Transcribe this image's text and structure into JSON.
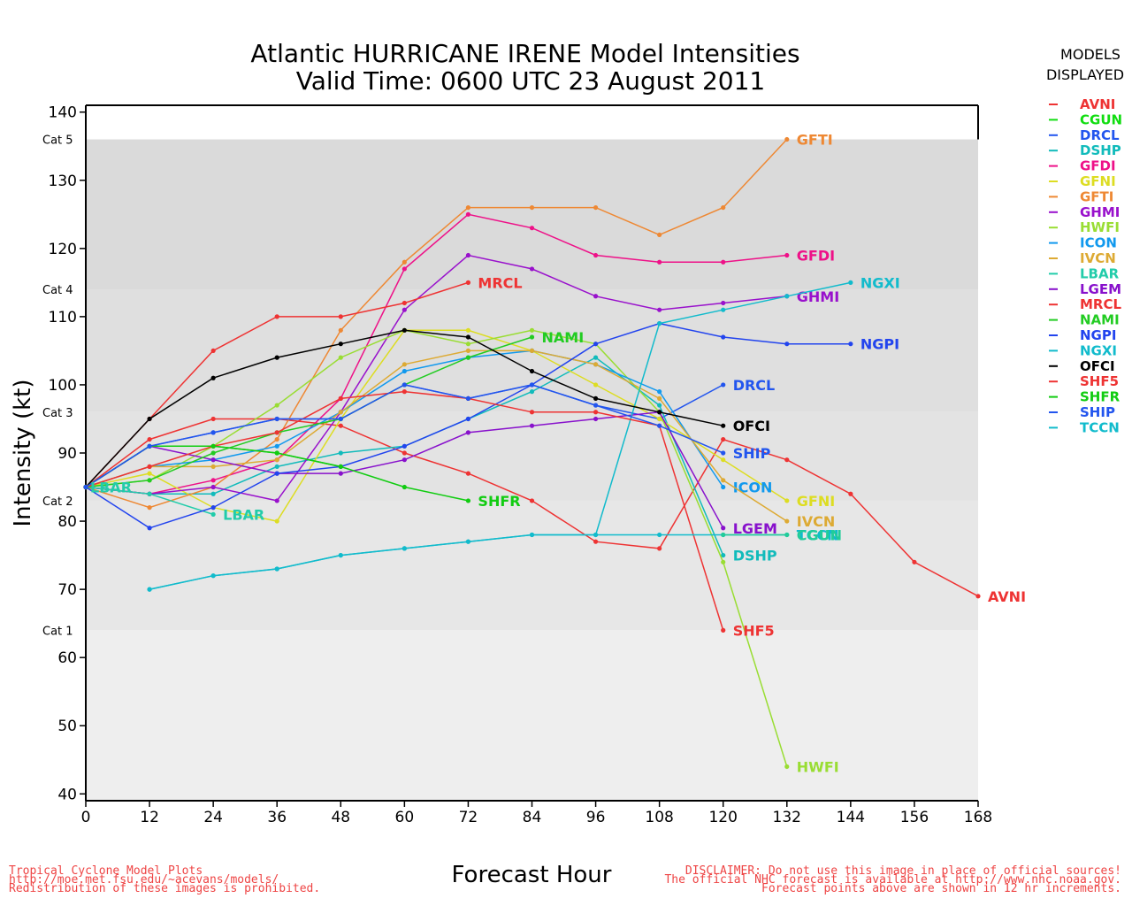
{
  "chart_data": {
    "type": "line",
    "title": [
      "Atlantic HURRICANE IRENE Model Intensities",
      "Valid Time: 0600 UTC 23 August 2011"
    ],
    "xlabel": "Forecast Hour",
    "ylabel": "Intensity (kt)",
    "xlim": [
      0,
      168
    ],
    "ylim": [
      39,
      141
    ],
    "x_ticks": [
      "0",
      "12",
      "24",
      "36",
      "48",
      "60",
      "72",
      "84",
      "96",
      "108",
      "120",
      "132",
      "144",
      "156",
      "168"
    ],
    "y_ticks": [
      "40",
      "50",
      "60",
      "70",
      "80",
      "90",
      "100",
      "110",
      "120",
      "130",
      "140"
    ],
    "categories": [
      {
        "label": "Cat 1",
        "value": 64
      },
      {
        "label": "Cat 2",
        "value": 83
      },
      {
        "label": "Cat 3",
        "value": 96
      },
      {
        "label": "Cat 4",
        "value": 114
      },
      {
        "label": "Cat 5",
        "value": 136
      }
    ],
    "legend_title": [
      "MODELS",
      "DISPLAYED"
    ],
    "legend_position": "right",
    "series": [
      {
        "name": "AVNI",
        "color": "#ee3333",
        "label": "AVNI",
        "points": [
          [
            0,
            85
          ],
          [
            12,
            92
          ],
          [
            24,
            95
          ],
          [
            36,
            95
          ],
          [
            48,
            94
          ],
          [
            60,
            90
          ],
          [
            72,
            87
          ],
          [
            84,
            83
          ],
          [
            96,
            77
          ],
          [
            108,
            76
          ],
          [
            120,
            92
          ],
          [
            132,
            89
          ],
          [
            144,
            84
          ],
          [
            156,
            74
          ],
          [
            168,
            69
          ]
        ]
      },
      {
        "name": "CGUN",
        "color": "#11dd11",
        "label": "",
        "points": [
          [
            0,
            85
          ],
          [
            12,
            91
          ],
          [
            24,
            91
          ],
          [
            36,
            90
          ],
          [
            48,
            88
          ]
        ]
      },
      {
        "name": "DRCL",
        "color": "#2255ee",
        "label": "DRCL",
        "points": [
          [
            0,
            85
          ],
          [
            12,
            91
          ],
          [
            24,
            93
          ],
          [
            36,
            95
          ],
          [
            48,
            95
          ],
          [
            60,
            100
          ],
          [
            72,
            98
          ],
          [
            84,
            100
          ],
          [
            96,
            97
          ],
          [
            108,
            95
          ],
          [
            120,
            100
          ]
        ]
      },
      {
        "name": "DSHP",
        "color": "#11bbbb",
        "label": "DSHP",
        "points": [
          [
            0,
            85
          ],
          [
            12,
            84
          ],
          [
            24,
            84
          ],
          [
            36,
            88
          ],
          [
            48,
            90
          ],
          [
            60,
            91
          ],
          [
            72,
            95
          ],
          [
            84,
            99
          ],
          [
            96,
            104
          ],
          [
            108,
            97
          ],
          [
            120,
            75
          ]
        ]
      },
      {
        "name": "GFDI",
        "color": "#ee1188",
        "label": "GFDI",
        "points": [
          [
            0,
            85
          ],
          [
            12,
            84
          ],
          [
            24,
            86
          ],
          [
            36,
            89
          ],
          [
            48,
            98
          ],
          [
            60,
            117
          ],
          [
            72,
            125
          ],
          [
            84,
            123
          ],
          [
            96,
            119
          ],
          [
            108,
            118
          ],
          [
            120,
            118
          ],
          [
            132,
            119
          ]
        ]
      },
      {
        "name": "GFNI",
        "color": "#dddd22",
        "label": "GFNI",
        "points": [
          [
            0,
            85
          ],
          [
            12,
            87
          ],
          [
            24,
            82
          ],
          [
            36,
            80
          ],
          [
            48,
            95
          ],
          [
            60,
            108
          ],
          [
            72,
            108
          ],
          [
            84,
            105
          ],
          [
            96,
            100
          ],
          [
            108,
            95
          ],
          [
            120,
            89
          ],
          [
            132,
            83
          ]
        ]
      },
      {
        "name": "GFTI",
        "color": "#ee8833",
        "label": "GFTI",
        "points": [
          [
            0,
            85
          ],
          [
            12,
            82
          ],
          [
            24,
            85
          ],
          [
            36,
            92
          ],
          [
            48,
            108
          ],
          [
            60,
            118
          ],
          [
            72,
            126
          ],
          [
            84,
            126
          ],
          [
            96,
            126
          ],
          [
            108,
            122
          ],
          [
            120,
            126
          ],
          [
            132,
            136
          ]
        ]
      },
      {
        "name": "GHMI",
        "color": "#9911cc",
        "label": "GHMI",
        "points": [
          [
            0,
            85
          ],
          [
            12,
            84
          ],
          [
            24,
            85
          ],
          [
            36,
            83
          ],
          [
            48,
            96
          ],
          [
            60,
            111
          ],
          [
            72,
            119
          ],
          [
            84,
            117
          ],
          [
            96,
            113
          ],
          [
            108,
            111
          ],
          [
            120,
            112
          ],
          [
            132,
            113
          ]
        ]
      },
      {
        "name": "HWFI",
        "color": "#99dd33",
        "label": "HWFI",
        "points": [
          [
            0,
            85
          ],
          [
            12,
            86
          ],
          [
            24,
            91
          ],
          [
            36,
            97
          ],
          [
            48,
            104
          ],
          [
            60,
            108
          ],
          [
            72,
            106
          ],
          [
            84,
            108
          ],
          [
            96,
            106
          ],
          [
            108,
            96
          ],
          [
            120,
            74
          ],
          [
            132,
            44
          ]
        ]
      },
      {
        "name": "ICON",
        "color": "#1199ee",
        "label": "ICON",
        "points": [
          [
            0,
            85
          ],
          [
            12,
            88
          ],
          [
            24,
            89
          ],
          [
            36,
            91
          ],
          [
            48,
            96
          ],
          [
            60,
            102
          ],
          [
            72,
            104
          ],
          [
            84,
            105
          ],
          [
            96,
            103
          ],
          [
            108,
            99
          ],
          [
            120,
            85
          ]
        ]
      },
      {
        "name": "IVCN",
        "color": "#ddaa33",
        "label": "IVCN",
        "points": [
          [
            0,
            85
          ],
          [
            12,
            88
          ],
          [
            24,
            88
          ],
          [
            36,
            89
          ],
          [
            48,
            96
          ],
          [
            60,
            103
          ],
          [
            72,
            105
          ],
          [
            84,
            105
          ],
          [
            96,
            103
          ],
          [
            108,
            98
          ],
          [
            120,
            86
          ],
          [
            132,
            80
          ]
        ]
      },
      {
        "name": "LBAR",
        "color": "#22ccaa",
        "label": "LBAR",
        "points": [
          [
            0,
            85
          ],
          [
            12,
            84
          ],
          [
            24,
            81
          ]
        ]
      },
      {
        "name": "LGEM",
        "color": "#8811cc",
        "label": "LGEM",
        "points": [
          [
            0,
            85
          ],
          [
            12,
            91
          ],
          [
            24,
            89
          ],
          [
            36,
            87
          ],
          [
            48,
            87
          ],
          [
            60,
            89
          ],
          [
            72,
            93
          ],
          [
            84,
            94
          ],
          [
            96,
            95
          ],
          [
            108,
            96
          ],
          [
            120,
            79
          ]
        ]
      },
      {
        "name": "MRCL",
        "color": "#ee3333",
        "label": "MRCL",
        "points": [
          [
            0,
            85
          ],
          [
            12,
            95
          ],
          [
            24,
            105
          ],
          [
            36,
            110
          ],
          [
            48,
            110
          ],
          [
            60,
            112
          ],
          [
            72,
            115
          ]
        ]
      },
      {
        "name": "NAMI",
        "color": "#22cc22",
        "label": "NAMI",
        "points": [
          [
            0,
            85
          ],
          [
            12,
            86
          ],
          [
            24,
            90
          ],
          [
            36,
            93
          ],
          [
            48,
            95
          ],
          [
            60,
            100
          ],
          [
            72,
            104
          ],
          [
            84,
            107
          ]
        ]
      },
      {
        "name": "NGPI",
        "color": "#2244ee",
        "label": "NGPI",
        "points": [
          [
            0,
            85
          ],
          [
            12,
            79
          ],
          [
            24,
            82
          ],
          [
            36,
            87
          ],
          [
            48,
            88
          ],
          [
            60,
            91
          ],
          [
            72,
            95
          ],
          [
            84,
            100
          ],
          [
            96,
            106
          ],
          [
            108,
            109
          ],
          [
            120,
            107
          ],
          [
            132,
            106
          ],
          [
            144,
            106
          ]
        ]
      },
      {
        "name": "NGXI",
        "color": "#11bbcc",
        "label": "NGXI",
        "points": [
          [
            12,
            70
          ],
          [
            24,
            72
          ],
          [
            36,
            73
          ],
          [
            48,
            75
          ],
          [
            60,
            76
          ],
          [
            72,
            77
          ],
          [
            84,
            78
          ],
          [
            96,
            78
          ],
          [
            108,
            109
          ],
          [
            120,
            111
          ],
          [
            132,
            113
          ],
          [
            144,
            115
          ]
        ]
      },
      {
        "name": "OFCI",
        "color": "#000000",
        "label": "OFCI",
        "points": [
          [
            0,
            85
          ],
          [
            12,
            95
          ],
          [
            24,
            101
          ],
          [
            36,
            104
          ],
          [
            48,
            106
          ],
          [
            60,
            108
          ],
          [
            72,
            107
          ],
          [
            84,
            102
          ],
          [
            96,
            98
          ],
          [
            108,
            96
          ],
          [
            120,
            94
          ]
        ]
      },
      {
        "name": "SHF5",
        "color": "#ee3333",
        "label": "SHF5",
        "points": [
          [
            0,
            85
          ],
          [
            12,
            88
          ],
          [
            24,
            91
          ],
          [
            36,
            93
          ],
          [
            48,
            98
          ],
          [
            60,
            99
          ],
          [
            72,
            98
          ],
          [
            84,
            96
          ],
          [
            96,
            96
          ],
          [
            108,
            94
          ],
          [
            120,
            64
          ]
        ]
      },
      {
        "name": "SHFR",
        "color": "#11cc11",
        "label": "SHFR",
        "points": [
          [
            0,
            85
          ],
          [
            12,
            91
          ],
          [
            24,
            91
          ],
          [
            36,
            90
          ],
          [
            48,
            88
          ],
          [
            60,
            85
          ],
          [
            72,
            83
          ]
        ]
      },
      {
        "name": "SHIP",
        "color": "#2255ee",
        "label": "SHIP",
        "points": [
          [
            0,
            85
          ],
          [
            12,
            91
          ],
          [
            24,
            93
          ],
          [
            36,
            95
          ],
          [
            48,
            95
          ],
          [
            60,
            100
          ],
          [
            72,
            98
          ],
          [
            84,
            100
          ],
          [
            96,
            97
          ],
          [
            108,
            94
          ],
          [
            120,
            90
          ]
        ]
      },
      {
        "name": "TCCN",
        "color": "#11bbcc",
        "label": "TCCN",
        "points": [
          [
            12,
            70
          ],
          [
            24,
            72
          ],
          [
            36,
            73
          ],
          [
            48,
            75
          ],
          [
            60,
            76
          ],
          [
            72,
            77
          ],
          [
            84,
            78
          ],
          [
            96,
            78
          ],
          [
            108,
            78
          ],
          [
            120,
            78
          ],
          [
            132,
            78
          ]
        ]
      },
      {
        "name": "CGUN2",
        "color": "#22cc99",
        "label": "CGUN",
        "points": [
          [
            120,
            78
          ],
          [
            132,
            78
          ]
        ]
      }
    ],
    "extra_labels": [
      {
        "text": "LBAR",
        "color": "#22ccaa",
        "x": 0,
        "y": 85
      }
    ]
  },
  "footer": {
    "left": [
      "Tropical Cyclone Model Plots",
      "http://moe.met.fsu.edu/~acevans/models/",
      "Redistribution of these images is prohibited."
    ],
    "right": [
      "DISCLAIMER: Do not use this image in place of official sources!",
      "The official NHC forecast is available at http://www.nhc.noaa.gov.",
      "Forecast points above are shown in 12 hr increments."
    ],
    "color": "#ee4444"
  }
}
